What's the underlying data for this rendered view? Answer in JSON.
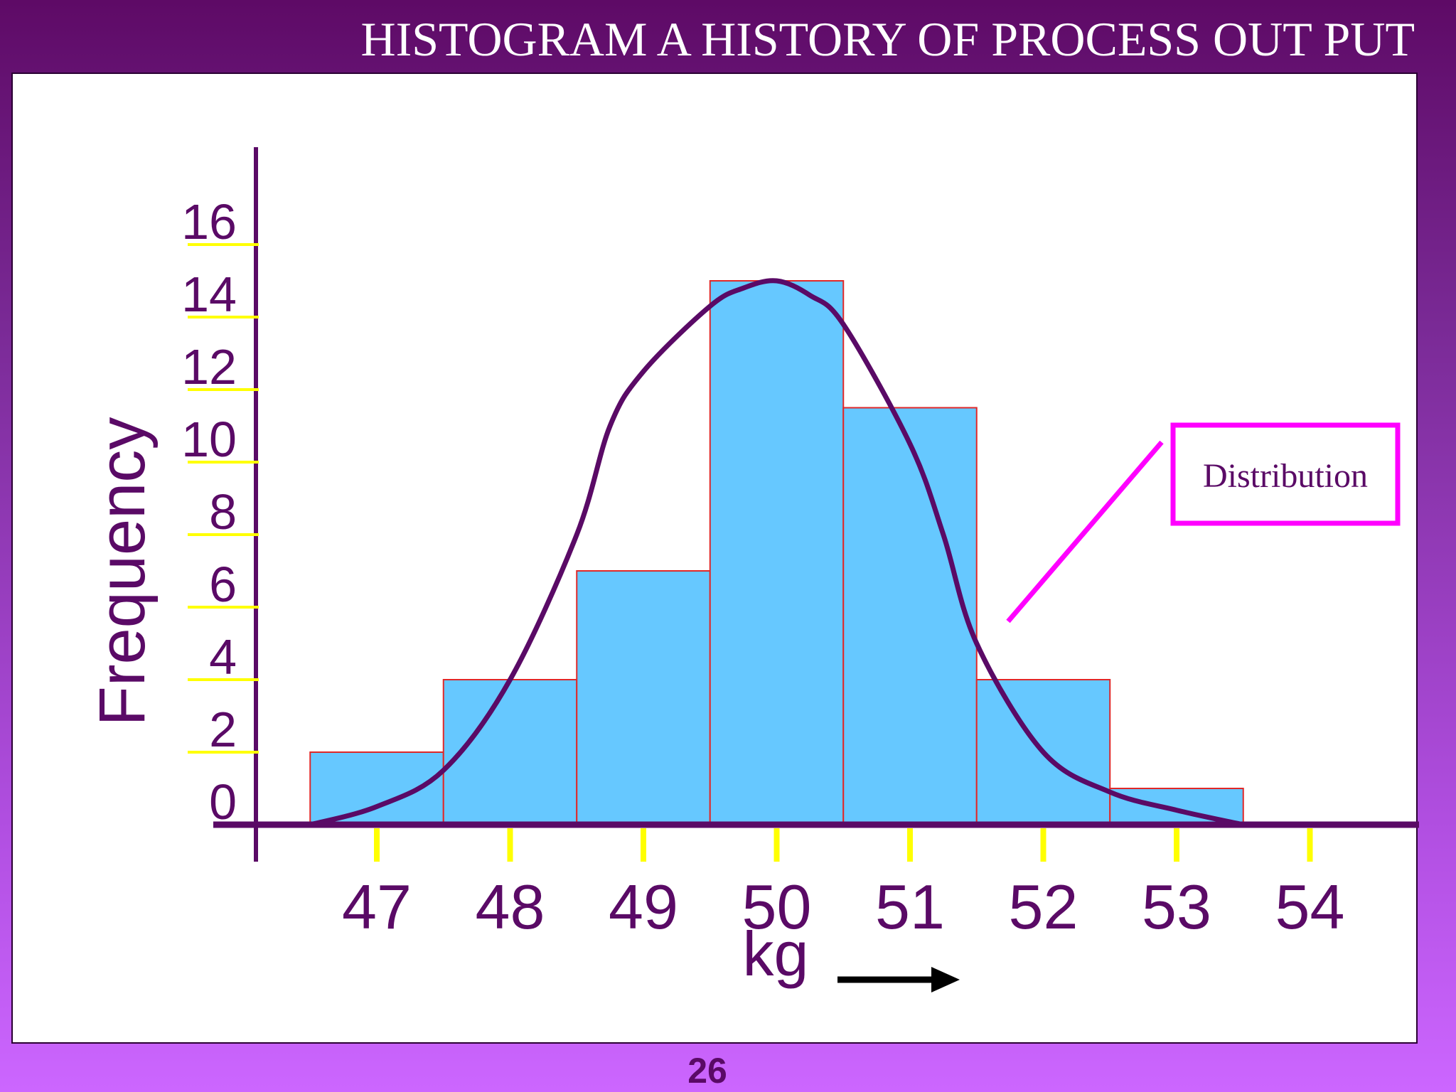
{
  "slide": {
    "title": "HISTOGRAM A HISTORY OF PROCESS OUT PUT",
    "page_number": "26"
  },
  "colors": {
    "bar_fill": "#66c8ff",
    "bar_edge": "#e02828",
    "axis": "#5a0a66",
    "curve": "#5a0a66",
    "tick_marks": "#ffff00",
    "annotation": "#ff00ff",
    "arrow": "#000000"
  },
  "chart_data": {
    "type": "bar",
    "categories": [
      "47",
      "48",
      "49",
      "50",
      "51",
      "52",
      "53"
    ],
    "values": [
      2,
      4,
      7,
      15,
      11.5,
      4,
      1
    ],
    "xlabel": "kg",
    "ylabel": "Frequency",
    "ylim": [
      0,
      16
    ],
    "y_ticks": [
      "0",
      "2",
      "4",
      "6",
      "8",
      "10",
      "12",
      "14",
      "16"
    ],
    "x_ticks": [
      "47",
      "48",
      "49",
      "50",
      "51",
      "52",
      "53",
      "54"
    ],
    "distribution_curve": {
      "x": [
        46.5,
        47.0,
        47.5,
        48.0,
        48.5,
        48.75,
        49.0,
        49.5,
        49.75,
        50.0,
        50.25,
        50.5,
        51.0,
        51.25,
        51.5,
        52.0,
        52.5,
        53.0,
        53.5
      ],
      "y": [
        0,
        0.5,
        1.5,
        4,
        8,
        11,
        12.5,
        14.3,
        14.8,
        15,
        14.6,
        13.8,
        10.5,
        8,
        5,
        2,
        0.9,
        0.4,
        0
      ]
    },
    "annotation": "Distribution",
    "grid": false
  }
}
